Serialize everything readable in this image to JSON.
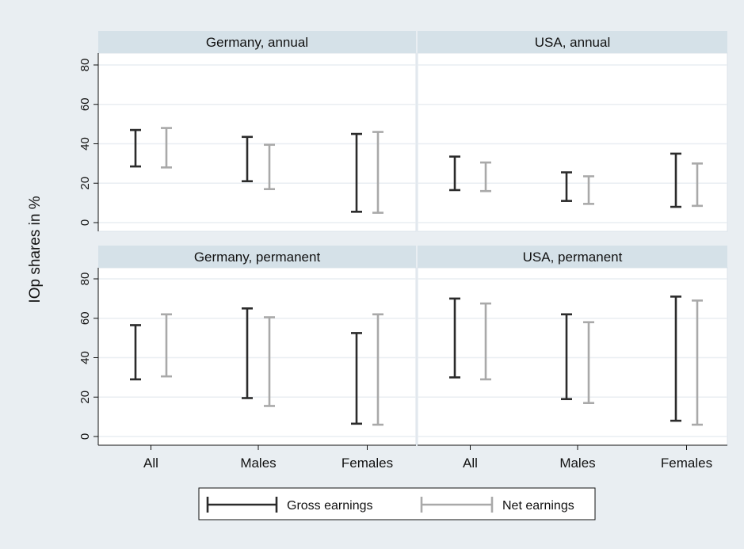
{
  "chart_data": {
    "type": "range-bar",
    "ylabel": "IOp shares in %",
    "categories": [
      "All",
      "Males",
      "Females"
    ],
    "ylim": [
      0,
      80
    ],
    "yticks": [
      0,
      20,
      40,
      60,
      80
    ],
    "grid": true,
    "legend_position": "bottom",
    "series": [
      {
        "name": "Gross earnings",
        "color": "#2b2b2b"
      },
      {
        "name": "Net earnings",
        "color": "#a9a9a9"
      }
    ],
    "panels": [
      {
        "title": "Germany, annual",
        "ranges": {
          "Gross earnings": [
            [
              28.5,
              47
            ],
            [
              21,
              43.5
            ],
            [
              5.5,
              45
            ]
          ],
          "Net earnings": [
            [
              28,
              48
            ],
            [
              17,
              39.5
            ],
            [
              5,
              46
            ]
          ]
        }
      },
      {
        "title": "USA, annual",
        "ranges": {
          "Gross earnings": [
            [
              16.5,
              33.5
            ],
            [
              11,
              25.5
            ],
            [
              8,
              35
            ]
          ],
          "Net earnings": [
            [
              16,
              30.5
            ],
            [
              9.5,
              23.5
            ],
            [
              8.5,
              30
            ]
          ]
        }
      },
      {
        "title": "Germany, permanent",
        "ranges": {
          "Gross earnings": [
            [
              29,
              56.5
            ],
            [
              19.5,
              65
            ],
            [
              6.5,
              52.5
            ]
          ],
          "Net earnings": [
            [
              30.5,
              62
            ],
            [
              15.5,
              60.5
            ],
            [
              6,
              62
            ]
          ]
        }
      },
      {
        "title": "USA, permanent",
        "ranges": {
          "Gross earnings": [
            [
              30,
              70
            ],
            [
              19,
              62
            ],
            [
              8,
              71
            ]
          ],
          "Net earnings": [
            [
              29,
              67.5
            ],
            [
              17,
              58
            ],
            [
              6,
              69
            ]
          ]
        }
      }
    ]
  }
}
